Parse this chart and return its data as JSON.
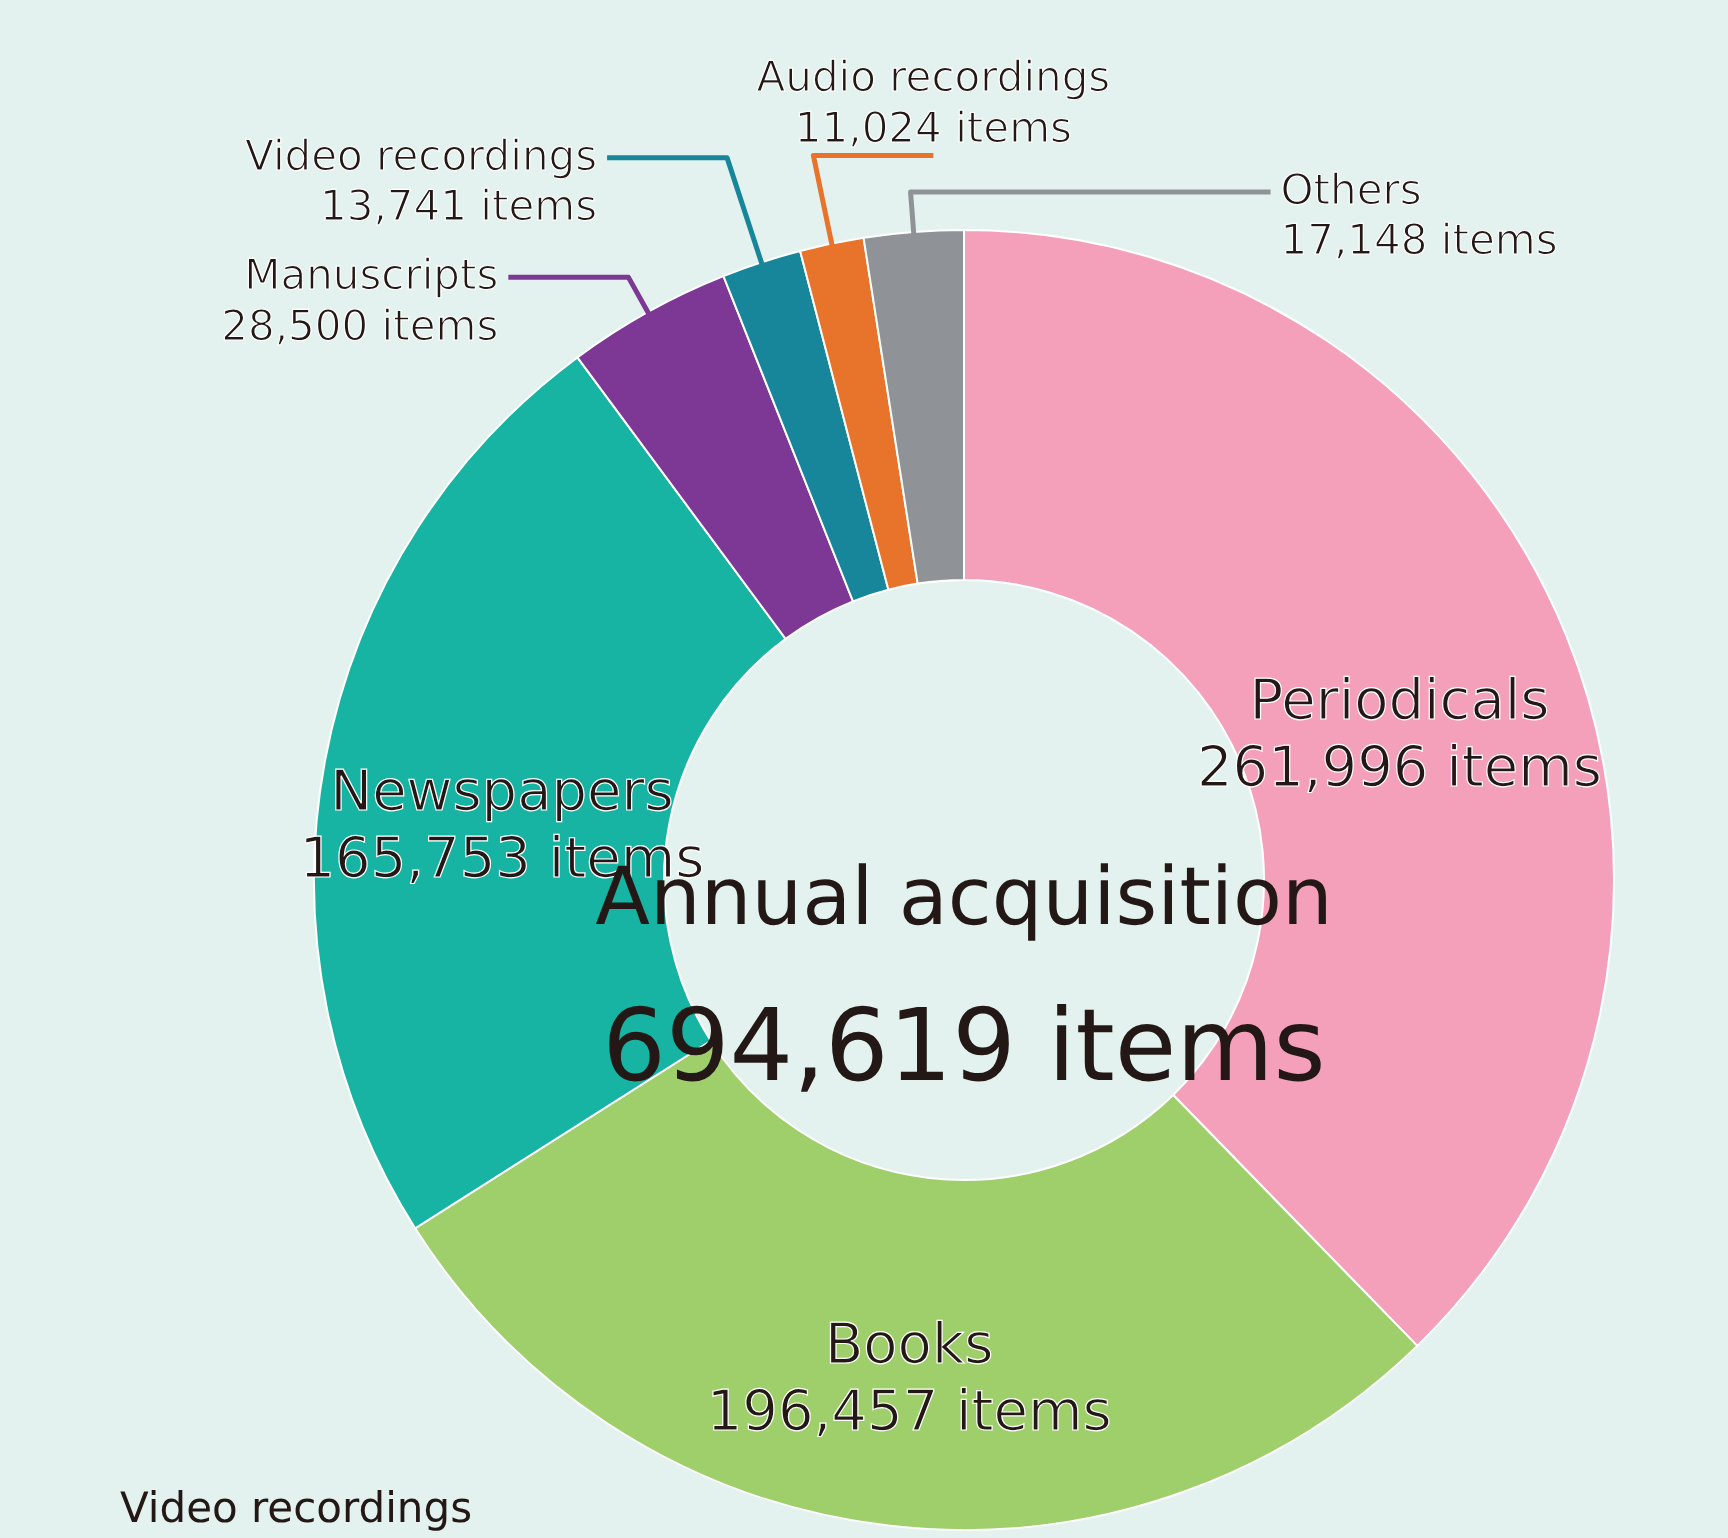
{
  "chart_data": {
    "type": "donut",
    "title": "Annual acquisition",
    "subtitle": "694,619 items",
    "categories": [
      "Periodicals",
      "Books",
      "Newspapers",
      "Manuscripts",
      "Video recordings",
      "Audio recordings",
      "Others"
    ],
    "values": [
      261996,
      196457,
      165753,
      28500,
      13741,
      11024,
      17148
    ],
    "colors": [
      "#f4a0bb",
      "#9fcf6a",
      "#17b3a3",
      "#7d3896",
      "#17869a",
      "#e8732a",
      "#8f9296"
    ],
    "value_labels": [
      "261,996 items",
      "196,457 items",
      "165,753 items",
      "28,500 items",
      "13,741 items",
      "11,024 items",
      "17,148 items"
    ],
    "annotations": [
      "Video recordings"
    ]
  }
}
